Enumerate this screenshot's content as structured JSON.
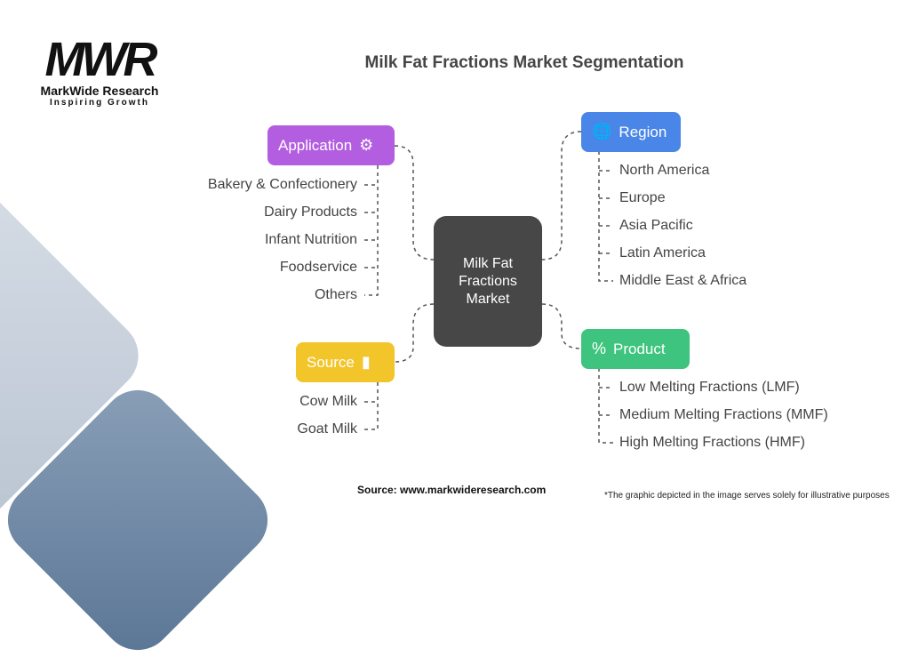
{
  "logo": {
    "mark": "MWR",
    "name": "MarkWide Research",
    "tagline": "Inspiring Growth"
  },
  "title": "Milk Fat Fractions Market Segmentation",
  "center": "Milk Fat Fractions Market",
  "colors": {
    "application": "#b35ee0",
    "region": "#4a86e8",
    "source": "#f2c52b",
    "product": "#3ec47e",
    "center": "#474747"
  },
  "application": {
    "label": "Application",
    "icon": "conveyor-robot-icon",
    "items": [
      "Bakery & Confectionery",
      "Dairy Products",
      "Infant Nutrition",
      "Foodservice",
      "Others"
    ]
  },
  "region": {
    "label": "Region",
    "icon": "globe-icon",
    "items": [
      "North America",
      "Europe",
      "Asia Pacific",
      "Latin America",
      "Middle East & Africa"
    ]
  },
  "source": {
    "label": "Source",
    "icon": "milk-carton-icon",
    "items": [
      "Cow Milk",
      "Goat Milk"
    ]
  },
  "product": {
    "label": "Product",
    "icon": "product-percent-icon",
    "items": [
      "Low Melting Fractions (LMF)",
      "Medium Melting Fractions (MMF)",
      "High Melting Fractions (HMF)"
    ]
  },
  "source_text": "Source: www.markwideresearch.com",
  "footnote": "*The graphic depicted in the image serves solely for illustrative purposes"
}
